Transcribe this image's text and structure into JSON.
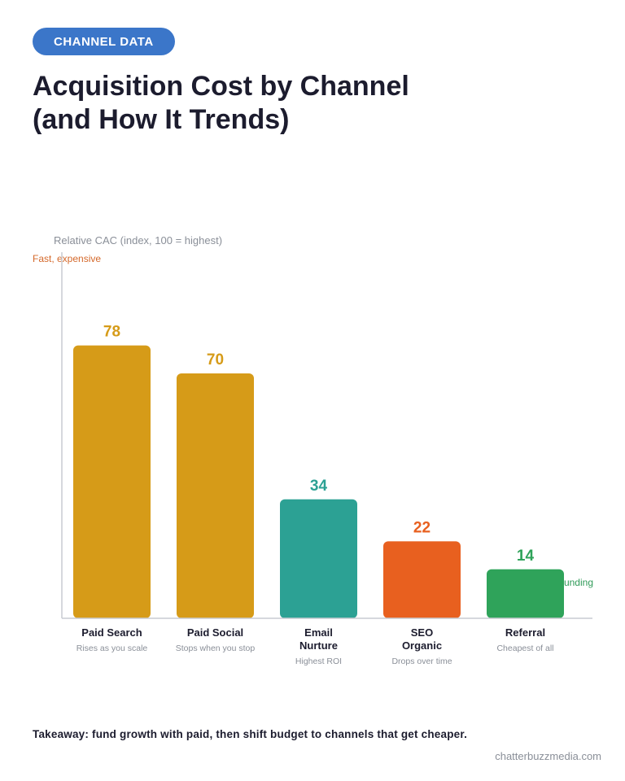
{
  "badge": "CHANNEL DATA",
  "title": {
    "line1": "Acquisition Cost by Channel",
    "line2": "(and How It Trends)"
  },
  "chart_data": {
    "type": "bar",
    "ylabel": "Relative CAC (index, 100 = highest)",
    "ylim": [
      0,
      100
    ],
    "grid": false,
    "axis_annotations": {
      "top": "Fast, expensive",
      "bottom": "unding"
    },
    "categories": [
      {
        "name_lines": [
          "Paid Search"
        ],
        "note": "Rises as you scale",
        "color": "#d69b18"
      },
      {
        "name_lines": [
          "Paid Social"
        ],
        "note": "Stops when you stop",
        "color": "#d69b18"
      },
      {
        "name_lines": [
          "Email",
          "Nurture"
        ],
        "note": "Highest ROI",
        "color": "#2ca194"
      },
      {
        "name_lines": [
          "SEO",
          "Organic"
        ],
        "note": "Drops over time",
        "color": "#e8601f"
      },
      {
        "name_lines": [
          "Referral"
        ],
        "note": "Cheapest of all",
        "color": "#2fa35a"
      }
    ],
    "values": [
      78,
      70,
      34,
      22,
      14
    ]
  },
  "colors": {
    "badge": "#3b76c9",
    "annotation_top": "#d4682a",
    "annotation_bottom": "#2f9a58",
    "axis": "#c8ccd2"
  },
  "takeaway": "Takeaway: fund growth with paid, then shift budget to channels that get cheaper.",
  "brand": "chatterbuzzmedia.com"
}
